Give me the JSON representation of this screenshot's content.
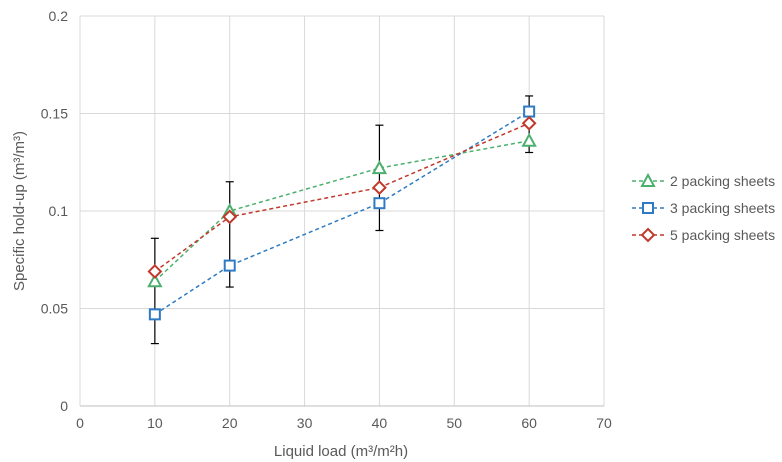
{
  "chart_data": {
    "type": "line",
    "xlabel": "Liquid load (m³/m²h)",
    "ylabel": "Specific hold-up (m³/m³)",
    "xlim": [
      0,
      70
    ],
    "ylim": [
      0,
      0.2
    ],
    "x_ticks": [
      0,
      10,
      20,
      30,
      40,
      50,
      60,
      70
    ],
    "y_ticks": [
      0,
      0.05,
      0.1,
      0.15,
      0.2
    ],
    "x_tick_labels": [
      "0",
      "10",
      "20",
      "30",
      "40",
      "50",
      "60",
      "70"
    ],
    "y_tick_labels": [
      "0",
      "0.05",
      "0.1",
      "0.15",
      "0.2"
    ],
    "grid": true,
    "legend_position": "right",
    "line_style": "dashed",
    "series": [
      {
        "name": "2 packing sheets",
        "marker": "triangle",
        "color": "#4caf6e",
        "x": [
          10,
          20,
          40,
          60
        ],
        "y": [
          0.064,
          0.1,
          0.122,
          0.136
        ]
      },
      {
        "name": "3 packing sheets",
        "marker": "square",
        "color": "#2e7bc4",
        "x": [
          10,
          20,
          40,
          60
        ],
        "y": [
          0.047,
          0.072,
          0.104,
          0.151
        ]
      },
      {
        "name": "5 packing sheets",
        "marker": "diamond",
        "color": "#c0392b",
        "x": [
          10,
          20,
          40,
          60
        ],
        "y": [
          0.069,
          0.097,
          0.112,
          0.145
        ]
      }
    ],
    "error_bars": {
      "color": "#000000",
      "x": [
        10,
        20,
        40,
        60
      ],
      "low": [
        0.032,
        0.061,
        0.09,
        0.13
      ],
      "high": [
        0.086,
        0.115,
        0.144,
        0.159
      ]
    }
  }
}
